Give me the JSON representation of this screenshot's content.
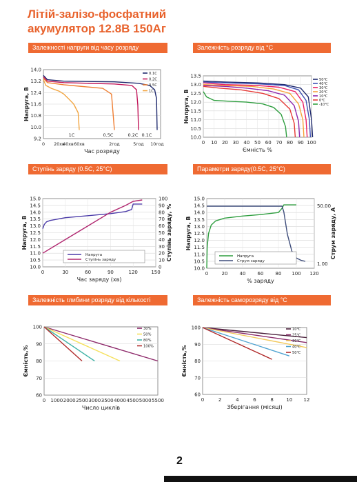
{
  "title": {
    "line1": "Літій-залізо-фосфатний",
    "line2": "акумулятор 12.8В 150Аг"
  },
  "sections": {
    "s1": "Залежності напруги від часу розряду",
    "s2": "Залежність розряду від °С",
    "s3": "Ступінь заряду (0.5C, 25°C)",
    "s4": "Параметри заряду(0.5C, 25°C)",
    "s5": "Залежність глибини розряду від кількості циклів",
    "s6": "Залежність саморозряду від °С"
  },
  "page_number": "2",
  "chart_data": [
    {
      "id": "discharge_time",
      "type": "line",
      "xlabel": "Час розряду",
      "ylabel": "Напруга, В",
      "ylim": [
        9.2,
        14.0
      ],
      "yticks": [
        "14.0",
        "13.2",
        "12.4",
        "11.6",
        "10.8",
        "10.0",
        "9.2"
      ],
      "xticks": [
        "0",
        "20хв",
        "40хв",
        "60хв",
        "2год",
        "5год",
        "10год"
      ],
      "x_positions": [
        0,
        20,
        40,
        60,
        120,
        300,
        600
      ],
      "legend": [
        "0.1C",
        "0.2C",
        "0.5C",
        "1C"
      ],
      "end_labels": [
        "1C",
        "0.5C",
        "0.2C",
        "0.1C"
      ],
      "colors": [
        "#1f2a6e",
        "#c2185b",
        "#ef7d31",
        "#f2a541"
      ],
      "series": [
        {
          "name": "0.1C",
          "x": [
            0,
            5,
            30,
            120,
            300,
            480,
            560,
            590,
            600
          ],
          "y": [
            13.6,
            13.3,
            13.2,
            13.15,
            13.05,
            12.9,
            12.6,
            12.0,
            9.8
          ]
        },
        {
          "name": "0.2C",
          "x": [
            0,
            5,
            30,
            120,
            250,
            285,
            295,
            300
          ],
          "y": [
            13.5,
            13.2,
            13.1,
            13.0,
            12.9,
            12.6,
            11.5,
            9.8
          ]
        },
        {
          "name": "0.5C",
          "x": [
            0,
            5,
            30,
            60,
            100,
            115,
            120
          ],
          "y": [
            13.4,
            13.1,
            12.95,
            12.85,
            12.7,
            12.3,
            9.8
          ]
        },
        {
          "name": "1C",
          "x": [
            0,
            3,
            10,
            20,
            30,
            40,
            50,
            58,
            60
          ],
          "y": [
            13.3,
            12.9,
            12.7,
            12.5,
            12.3,
            12.0,
            11.6,
            11.0,
            9.8
          ]
        }
      ]
    },
    {
      "id": "discharge_temp",
      "type": "line",
      "xlabel": "Ємність %",
      "ylabel": "Напруга, В",
      "ylim": [
        10.0,
        13.5
      ],
      "xlim": [
        0,
        100
      ],
      "yticks": [
        "13.5",
        "13.0",
        "12.5",
        "12.0",
        "11.5",
        "11.0",
        "10.5",
        "10.0"
      ],
      "xticks": [
        "0",
        "10",
        "20",
        "30",
        "40",
        "50",
        "60",
        "70",
        "80",
        "90",
        "100"
      ],
      "legend": [
        "50℃",
        "40℃",
        "30℃",
        "20℃",
        "10℃",
        "0℃",
        "-10℃"
      ],
      "colors": [
        "#1f2a6e",
        "#3f51b5",
        "#e91e63",
        "#f7a23b",
        "#8e24aa",
        "#e53935",
        "#2e9e3f"
      ],
      "series": [
        {
          "name": "50℃",
          "x": [
            0,
            20,
            50,
            75,
            90,
            97,
            100,
            101
          ],
          "y": [
            13.2,
            13.15,
            13.1,
            13.0,
            12.8,
            12.3,
            11.0,
            10.0
          ]
        },
        {
          "name": "40℃",
          "x": [
            0,
            20,
            50,
            75,
            88,
            95,
            98,
            99
          ],
          "y": [
            13.15,
            13.1,
            13.05,
            12.95,
            12.7,
            12.1,
            11.0,
            10.0
          ]
        },
        {
          "name": "30℃",
          "x": [
            0,
            20,
            50,
            70,
            85,
            92,
            95,
            96
          ],
          "y": [
            13.1,
            13.0,
            12.95,
            12.85,
            12.6,
            12.0,
            11.0,
            10.0
          ]
        },
        {
          "name": "20℃",
          "x": [
            0,
            20,
            45,
            65,
            80,
            88,
            92,
            93
          ],
          "y": [
            13.0,
            12.95,
            12.9,
            12.75,
            12.5,
            11.9,
            11.0,
            10.0
          ]
        },
        {
          "name": "10℃",
          "x": [
            0,
            20,
            40,
            60,
            75,
            84,
            88,
            89
          ],
          "y": [
            12.95,
            12.9,
            12.8,
            12.65,
            12.4,
            11.8,
            10.9,
            10.0
          ]
        },
        {
          "name": "0℃",
          "x": [
            0,
            15,
            35,
            55,
            70,
            80,
            84,
            85
          ],
          "y": [
            12.9,
            12.8,
            12.7,
            12.5,
            12.2,
            11.6,
            10.8,
            10.0
          ]
        },
        {
          "name": "-10℃",
          "x": [
            0,
            3,
            10,
            25,
            40,
            55,
            65,
            72,
            76,
            77
          ],
          "y": [
            12.6,
            12.3,
            12.1,
            12.05,
            12.0,
            11.9,
            11.7,
            11.3,
            10.6,
            10.0
          ]
        }
      ]
    },
    {
      "id": "charge_state",
      "type": "line",
      "xlabel": "Час заряду (хв)",
      "ylabel": "Напруга, В",
      "ylabel_right": "Ступінь заряду, %",
      "ylim": [
        10.0,
        15.0
      ],
      "ylim_right": [
        0,
        100
      ],
      "xlim": [
        0,
        150
      ],
      "yticks": [
        "15.0",
        "14.5",
        "14.0",
        "13.5",
        "13.0",
        "12.5",
        "12.0",
        "11.5",
        "11.0",
        "10.5",
        "10.0"
      ],
      "yticks_right": [
        "100",
        "90",
        "80",
        "70",
        "60",
        "50",
        "40",
        "30",
        "20",
        "10",
        "0"
      ],
      "xticks": [
        "0",
        "30",
        "60",
        "90",
        "120",
        "150"
      ],
      "legend": [
        "Напруга",
        "Ступінь заряду"
      ],
      "colors": [
        "#4a3aa8",
        "#b0266f"
      ],
      "series": [
        {
          "name": "Напруга",
          "x": [
            0,
            2,
            5,
            10,
            30,
            60,
            90,
            110,
            118,
            120,
            132
          ],
          "y": [
            12.8,
            13.1,
            13.3,
            13.4,
            13.6,
            13.75,
            13.9,
            14.05,
            14.2,
            14.6,
            14.6
          ]
        },
        {
          "name": "Ступінь заряду",
          "x": [
            0,
            30,
            60,
            90,
            110,
            120,
            132
          ],
          "y": [
            20,
            40,
            60,
            80,
            90,
            96,
            98
          ]
        }
      ]
    },
    {
      "id": "charge_params",
      "type": "line",
      "xlabel": "% заряду",
      "ylabel": "Напруга, В",
      "ylabel_right": "Струм заряду, А",
      "ylim": [
        10.0,
        15.0
      ],
      "xlim": [
        0,
        120
      ],
      "yticks": [
        "15.0",
        "14.5",
        "14.0",
        "13.5",
        "13.0",
        "12.5",
        "12.0",
        "11.5",
        "11.0",
        "10.5",
        "10.0"
      ],
      "yticks_right": [
        "50.00",
        "1.00"
      ],
      "xticks": [
        "0",
        "20",
        "40",
        "60",
        "80",
        "100",
        "120"
      ],
      "legend": [
        "Напруга",
        "Струм заряду"
      ],
      "colors": [
        "#2e9e3f",
        "#3d4c7a"
      ],
      "series": [
        {
          "name": "Напруга",
          "x": [
            0,
            0.5,
            2,
            5,
            10,
            20,
            40,
            60,
            80,
            84,
            86,
            95,
            100
          ],
          "y": [
            10.0,
            11.5,
            12.5,
            13.1,
            13.4,
            13.6,
            13.75,
            13.85,
            14.0,
            14.3,
            14.55,
            14.55,
            14.55
          ]
        },
        {
          "name": "Струм заряду",
          "x": [
            0,
            20,
            40,
            60,
            80,
            84,
            86,
            90,
            95,
            100,
            105,
            110
          ],
          "y": [
            50,
            50,
            50,
            50,
            50,
            50,
            45,
            25,
            10,
            4,
            2,
            1
          ]
        }
      ]
    },
    {
      "id": "cycles",
      "type": "line",
      "xlabel": "Число циклів",
      "ylabel": "Ємність,%",
      "ylim": [
        60,
        100
      ],
      "xlim": [
        0,
        5500
      ],
      "yticks": [
        "100",
        "90",
        "80",
        "70",
        "60"
      ],
      "xticks": [
        "0",
        "1000",
        "2000",
        "2500",
        "3000",
        "3500",
        "4000",
        "4500",
        "5000",
        "5500"
      ],
      "legend": [
        "30%",
        "50%",
        "80%",
        "100%"
      ],
      "colors": [
        "#8e2a6b",
        "#f5e05a",
        "#3fb3a6",
        "#b02a2a"
      ],
      "series": [
        {
          "name": "30%",
          "x": [
            0,
            5500
          ],
          "y": [
            100,
            80
          ]
        },
        {
          "name": "50%",
          "x": [
            0,
            4000
          ],
          "y": [
            100,
            80
          ]
        },
        {
          "name": "80%",
          "x": [
            0,
            3000
          ],
          "y": [
            100,
            80
          ]
        },
        {
          "name": "100%",
          "x": [
            0,
            2500
          ],
          "y": [
            100,
            80
          ]
        }
      ]
    },
    {
      "id": "self_discharge",
      "type": "line",
      "xlabel": "Зберігання (місяці)",
      "ylabel": "Ємність,%",
      "ylim": [
        60,
        100
      ],
      "xlim": [
        0,
        12
      ],
      "yticks": [
        "100",
        "90",
        "80",
        "70",
        "60"
      ],
      "xticks": [
        "0",
        "2",
        "4",
        "6",
        "8",
        "10",
        "12"
      ],
      "legend": [
        "10℃",
        "25℃",
        "30℃",
        "40℃",
        "50℃"
      ],
      "colors": [
        "#4a1f3a",
        "#8a2a6a",
        "#f2c85a",
        "#4fa3d1",
        "#b02a2a"
      ],
      "series": [
        {
          "name": "10℃",
          "x": [
            0,
            12
          ],
          "y": [
            100,
            94
          ]
        },
        {
          "name": "25℃",
          "x": [
            0,
            12
          ],
          "y": [
            100,
            91
          ]
        },
        {
          "name": "30℃",
          "x": [
            0,
            12
          ],
          "y": [
            100,
            88
          ]
        },
        {
          "name": "40℃",
          "x": [
            0,
            10
          ],
          "y": [
            100,
            83
          ]
        },
        {
          "name": "50℃",
          "x": [
            0,
            8
          ],
          "y": [
            100,
            81
          ]
        }
      ]
    }
  ]
}
